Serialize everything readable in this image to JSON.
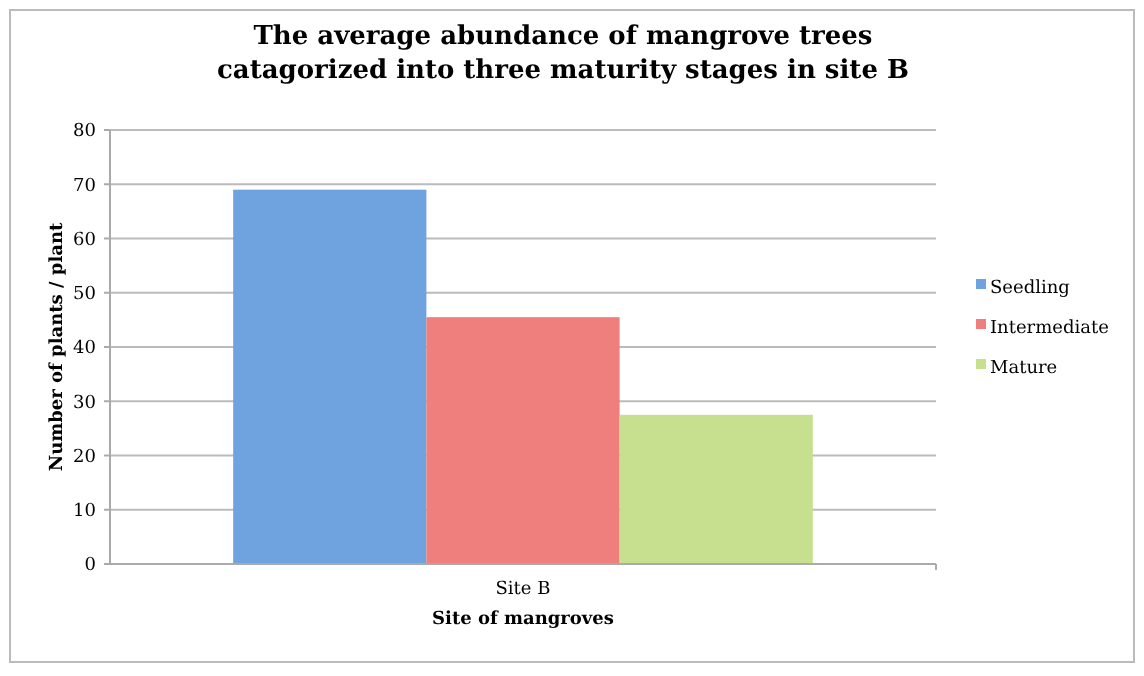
{
  "chart_data": {
    "type": "bar",
    "title": "The average abundance of mangrove trees\ncatagorized into three maturity stages in site B",
    "xlabel": "Site of mangroves",
    "ylabel": "Number of plants / plant",
    "categories": [
      "Site B"
    ],
    "series": [
      {
        "name": "Seedling",
        "color": "#6fa3e0",
        "values": [
          69
        ]
      },
      {
        "name": "Intermediate",
        "color": "#ee7f7c",
        "values": [
          45.5
        ]
      },
      {
        "name": "Mature",
        "color": "#c6e090",
        "values": [
          27.5
        ]
      }
    ],
    "ylim": [
      0,
      80
    ],
    "yticks": [
      0,
      10,
      20,
      30,
      40,
      50,
      60,
      70,
      80
    ],
    "grid": "y",
    "legend": "right"
  }
}
